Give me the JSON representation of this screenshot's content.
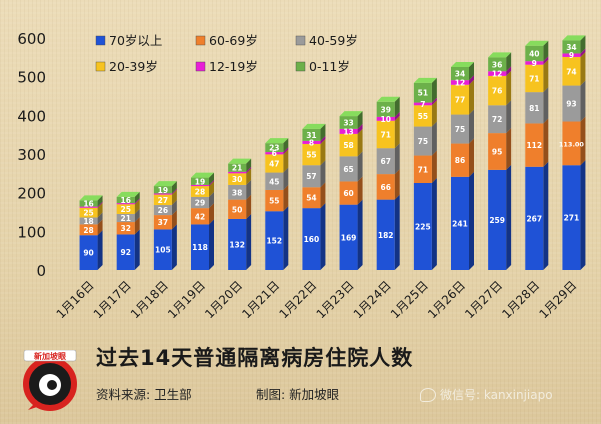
{
  "chart_data": {
    "type": "stacked-bar",
    "title": "过去14天普通隔离病房住院人数",
    "categories": [
      "1月16日",
      "1月17日",
      "1月18日",
      "1月19日",
      "1月20日",
      "1月21日",
      "1月22日",
      "1月23日",
      "1月24日",
      "1月25日",
      "1月26日",
      "1月27日",
      "1月28日",
      "1月29日"
    ],
    "ylim": [
      0,
      600
    ],
    "yticks": [
      0,
      100,
      200,
      300,
      400,
      500,
      600
    ],
    "grid": false,
    "legend_position": "top-left",
    "series": [
      {
        "name": "70岁以上",
        "color": "#1f52d6",
        "values": [
          90,
          92,
          105,
          118,
          132,
          152,
          160,
          169,
          182,
          225,
          241,
          259,
          267,
          271
        ]
      },
      {
        "name": "60-69岁",
        "color": "#ef7f2c",
        "values": [
          28,
          32,
          37,
          42,
          50,
          55,
          54,
          60,
          66,
          71,
          86,
          95,
          112,
          113
        ]
      },
      {
        "name": "40-59岁",
        "color": "#9b9b9b",
        "values": [
          18,
          21,
          26,
          29,
          38,
          45,
          57,
          65,
          67,
          75,
          75,
          72,
          81,
          93
        ]
      },
      {
        "name": "20-39岁",
        "color": "#f7c31f",
        "values": [
          25,
          25,
          27,
          28,
          30,
          47,
          55,
          58,
          71,
          55,
          77,
          76,
          71,
          74
        ]
      },
      {
        "name": "12-19岁",
        "color": "#e81ed6",
        "values": [
          3,
          3,
          3,
          3,
          4,
          6,
          8,
          13,
          10,
          7,
          12,
          12,
          9,
          9
        ]
      },
      {
        "name": "0-11岁",
        "color": "#6cb04a",
        "values": [
          16,
          16,
          19,
          19,
          21,
          23,
          31,
          33,
          39,
          51,
          34,
          36,
          40,
          34
        ]
      }
    ],
    "value_labels": [
      [
        "90",
        "28",
        "18",
        "25",
        "",
        "16"
      ],
      [
        "92",
        "32",
        "21",
        "25",
        "",
        "16"
      ],
      [
        "105",
        "37",
        "26",
        "27",
        "",
        "19"
      ],
      [
        "118",
        "42",
        "29",
        "28",
        "",
        "19"
      ],
      [
        "132",
        "50",
        "38",
        "30",
        "",
        "21"
      ],
      [
        "152",
        "55",
        "45",
        "47",
        "6",
        "23"
      ],
      [
        "160",
        "54",
        "57",
        "55",
        "8",
        "31"
      ],
      [
        "169",
        "60",
        "65",
        "58",
        "13",
        "33"
      ],
      [
        "182",
        "66",
        "67",
        "71",
        "10",
        "39"
      ],
      [
        "225",
        "71",
        "75",
        "55",
        "7",
        "51"
      ],
      [
        "241",
        "86",
        "75",
        "77",
        "12",
        "34"
      ],
      [
        "259",
        "95",
        "72",
        "76",
        "12",
        "36"
      ],
      [
        "267",
        "112",
        "81",
        "71",
        "9",
        "40"
      ],
      [
        "271",
        "113.00",
        "93",
        "74",
        "9",
        "34"
      ]
    ]
  },
  "footer": {
    "source": "资料来源:  卫生部",
    "credit": "制图:  新加坡眼",
    "wechat": "微信号: kanxinjiapo",
    "logo_text": "新加坡眼"
  }
}
